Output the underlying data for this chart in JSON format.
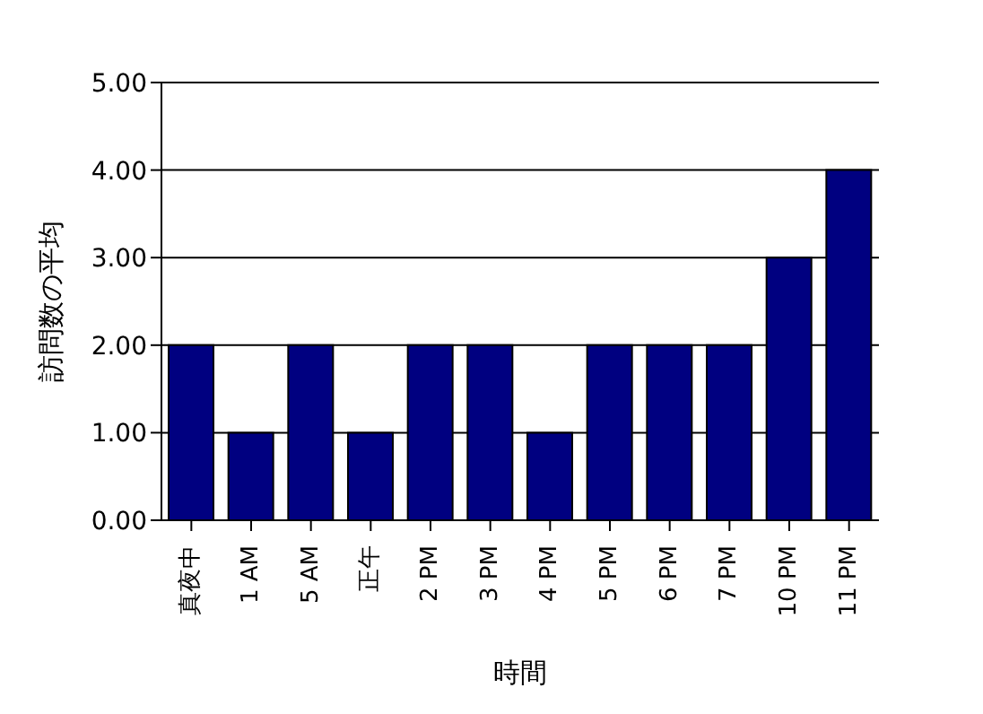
{
  "chart_data": {
    "type": "bar",
    "xlabel": "時間",
    "ylabel": "訪問数の平均",
    "categories": [
      "真夜中",
      "1 AM",
      "5 AM",
      "正午",
      "2 PM",
      "3 PM",
      "4 PM",
      "5 PM",
      "6 PM",
      "7 PM",
      "10 PM",
      "11 PM"
    ],
    "values": [
      2,
      1,
      2,
      1,
      2,
      2,
      1,
      2,
      2,
      2,
      3,
      4
    ],
    "color": "#000080",
    "ylim": [
      0,
      5
    ],
    "yticks": [
      {
        "value": 0,
        "label": "0.00"
      },
      {
        "value": 1,
        "label": "1.00"
      },
      {
        "value": 2,
        "label": "2.00"
      },
      {
        "value": 3,
        "label": "3.00"
      },
      {
        "value": 4,
        "label": "4.00"
      },
      {
        "value": 5,
        "label": "5.00"
      }
    ],
    "grid": "y"
  }
}
